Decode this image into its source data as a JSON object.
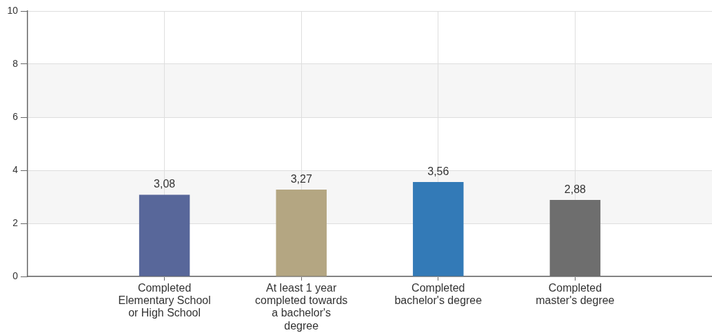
{
  "chart_data": {
    "type": "bar",
    "categories": [
      "Completed Elementary School or High School",
      "At least 1 year completed towards a bachelor's degree",
      "Completed bachelor's degree",
      "Completed master's degree"
    ],
    "values": [
      3.08,
      3.27,
      3.56,
      2.88
    ],
    "colors": [
      "#58679a",
      "#b4a682",
      "#337ab7",
      "#6e6e6e"
    ],
    "value_labels": [
      "3,08",
      "3,27",
      "3,56",
      "2,88"
    ],
    "ylim": [
      0,
      10
    ],
    "yticks": [
      0,
      2,
      4,
      6,
      8,
      10
    ],
    "grid": true
  }
}
